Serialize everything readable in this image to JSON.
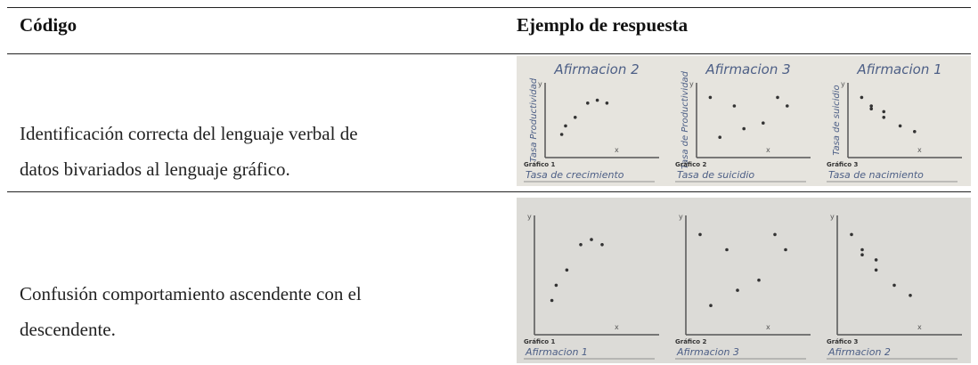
{
  "header": {
    "code": "Código",
    "example": "Ejemplo de respuesta"
  },
  "axis_labels": {
    "x": "x",
    "y": "y"
  },
  "rows": [
    {
      "code": "Identificación correcta del lenguaje verbal de datos bivariados al lenguaje gráfico.",
      "panels": [
        {
          "heading": "Afirmacion 2",
          "y_label": "Tasa Productividad",
          "graph": "Gráfico 1",
          "caption": "Tasa de crecimiento"
        },
        {
          "heading": "Afirmacion 3",
          "y_label": "Tasa de Productividad",
          "graph": "Gráfico 2",
          "caption": "Tasa de suicidio"
        },
        {
          "heading": "Afirmacion 1",
          "y_label": "Tasa de suicidio",
          "graph": "Gráfico 3",
          "caption": "Tasa de nacimiento"
        }
      ]
    },
    {
      "code": "Confusión comportamiento ascendente con el descendente.",
      "panels": [
        {
          "graph": "Gráfico 1",
          "caption": "Afirmacion 1"
        },
        {
          "graph": "Gráfico 2",
          "caption": "Afirmacion 3"
        },
        {
          "graph": "Gráfico 3",
          "caption": "Afirmacion 2"
        }
      ]
    }
  ]
}
